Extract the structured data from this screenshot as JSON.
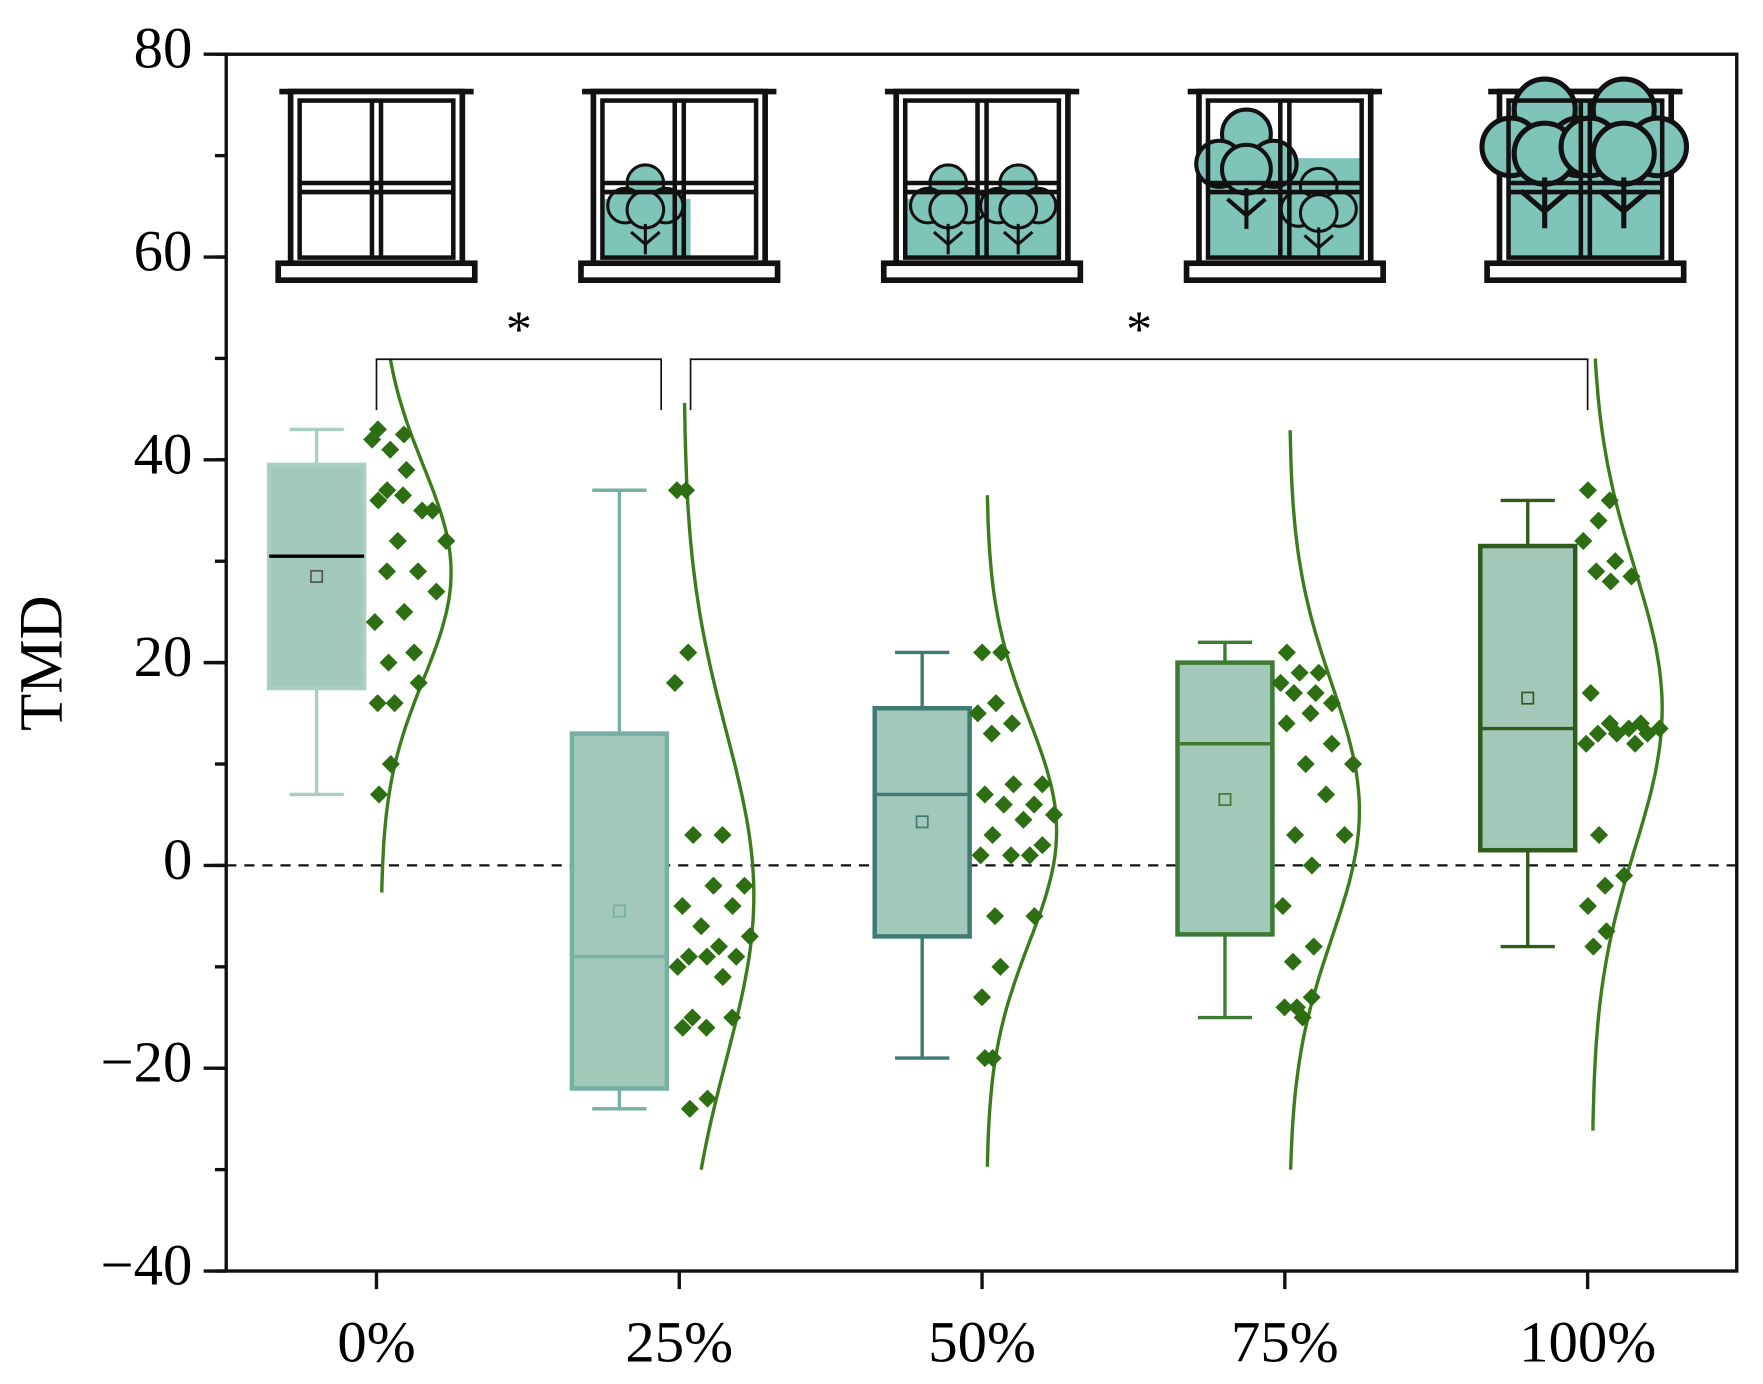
{
  "chart_data": {
    "type": "box",
    "y_label": "TMD",
    "categories": [
      "0%",
      "25%",
      "50%",
      "75%",
      "100%"
    ],
    "ylim": [
      -40,
      80
    ],
    "yticks": [
      {
        "value": -40,
        "label": "−40"
      },
      {
        "value": -20,
        "label": "−20"
      },
      0,
      20,
      40,
      60,
      80
    ],
    "y_minor_step": 10,
    "reference_line": 0,
    "point_color": "#2d6e12",
    "curve_color": "#3a7d1a",
    "box_fill": "#a2c8ba",
    "boxes": [
      {
        "whisker_low": 7,
        "q1": 17.5,
        "median": 30.5,
        "q3": 39.5,
        "whisker_high": 43,
        "mean": 28.5,
        "color": "#a9cfc1",
        "median_color": "#000000",
        "points": [
          43,
          42.5,
          41,
          42,
          39,
          37,
          35,
          36.5,
          36,
          35,
          32,
          32,
          29,
          29,
          27,
          25,
          24,
          21,
          20,
          18,
          16,
          16,
          10,
          7
        ]
      },
      {
        "whisker_low": -24,
        "q1": -22,
        "median": -9,
        "q3": 13,
        "whisker_high": 37,
        "mean": -4.5,
        "color": "#77b0a2",
        "median_color": "#7ab3a5",
        "points": [
          37,
          37,
          21,
          18,
          3,
          3,
          -2,
          -2,
          -4,
          -4,
          -6,
          -7,
          -8,
          -9,
          -9,
          -9,
          -10,
          -11,
          -15,
          -15,
          -16,
          -16,
          -23,
          -24
        ]
      },
      {
        "whisker_low": -19,
        "q1": -7,
        "median": 7,
        "q3": 15.5,
        "whisker_high": 21,
        "mean": 4.3,
        "color": "#3f7b73",
        "median_color": "#3f7b73",
        "points": [
          21,
          21,
          16,
          15,
          14,
          13,
          8,
          8,
          7,
          6,
          6,
          5,
          4.5,
          3,
          2,
          1,
          1,
          1,
          -5,
          -5,
          -10,
          -13,
          -19,
          -19
        ]
      },
      {
        "whisker_low": -15,
        "q1": -6.8,
        "median": 12,
        "q3": 20,
        "whisker_high": 22,
        "mean": 6.5,
        "color": "#3d7b35",
        "median_color": "#3d7b35",
        "points": [
          21,
          19,
          19,
          18,
          17,
          17,
          16,
          15,
          14,
          12,
          10,
          10,
          7,
          3,
          3,
          0,
          -4,
          -8,
          -9.5,
          -13,
          -14,
          -14,
          -15
        ]
      },
      {
        "whisker_low": -8,
        "q1": 1.5,
        "median": 13.5,
        "q3": 31.5,
        "whisker_high": 36,
        "mean": 16.5,
        "color": "#2f5c1a",
        "median_color": "#2f5c1a",
        "points": [
          37,
          36,
          34,
          32,
          30,
          29,
          28.5,
          28,
          17,
          14,
          14,
          13.5,
          13.5,
          13,
          13,
          13,
          12,
          12,
          3,
          -1,
          -2,
          -4,
          -6.5,
          -8
        ]
      }
    ],
    "significance": [
      {
        "label": "*",
        "groups": [
          "0%",
          "25%"
        ]
      },
      {
        "label": "*",
        "groups": [
          "25%",
          "100%"
        ]
      }
    ]
  }
}
